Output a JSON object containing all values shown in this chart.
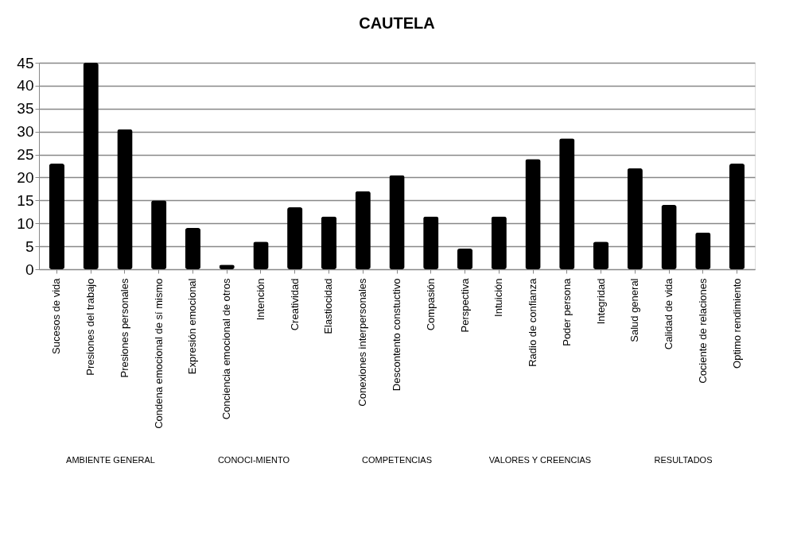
{
  "chart_data": {
    "type": "bar",
    "title": "CAUTELA",
    "categories": [
      "Sucesos de vida",
      "Presiones del trabajo",
      "Presiones personales",
      "Condena emocional de sí mismo",
      "Expresión emocional",
      "Conciencia emocional de otros",
      "Intención",
      "Creatividad",
      "Elastiocidad",
      "Conexiones interpersonales",
      "Descontento constuctivo",
      "Compasión",
      "Perspectiva",
      "Intuición",
      "Radio de confianza",
      "Poder persona",
      "Integridad",
      "Salud general",
      "Calidad de vida",
      "Cociente de relaciones",
      "Optimo rendimiento"
    ],
    "values": [
      23,
      45,
      30.5,
      15,
      9,
      1,
      6,
      13.5,
      11.5,
      17,
      20.5,
      11.5,
      4.5,
      11.5,
      24,
      28.5,
      6,
      22,
      14,
      8,
      23
    ],
    "color": "#000000",
    "ylim": [
      0,
      45
    ],
    "yticks": [
      0,
      5,
      10,
      15,
      20,
      25,
      30,
      35,
      40,
      45
    ],
    "grid": "y",
    "annotations": [
      "AMBIENTE GENERAL",
      "CONOCI-MIENTO",
      "COMPETENCIAS",
      "VALORES Y CREENCIAS",
      "RESULTADOS"
    ]
  }
}
